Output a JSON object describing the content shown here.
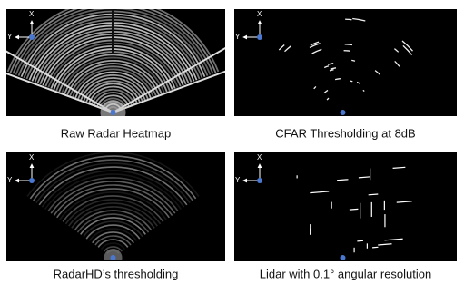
{
  "panels": [
    {
      "caption": "Raw Radar Heatmap",
      "axis_x": "X",
      "axis_y": "Y"
    },
    {
      "caption": "CFAR Thresholding at 8dB",
      "axis_x": "X",
      "axis_y": "Y"
    },
    {
      "caption": "RadarHD’s thresholding",
      "axis_x": "X",
      "axis_y": "Y"
    },
    {
      "caption": "Lidar with 0.1° angular resolution",
      "axis_x": "X",
      "axis_y": "Y"
    }
  ]
}
